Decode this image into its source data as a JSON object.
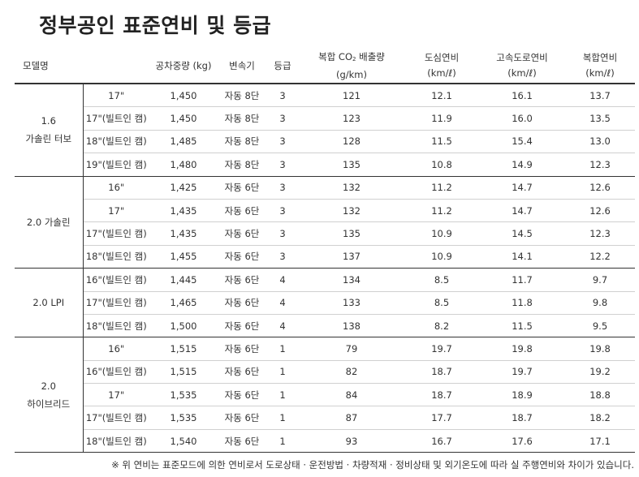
{
  "title": "정부공인 표준연비 및 등급",
  "headers": {
    "model": "모델명",
    "weight": "공차중량 (kg)",
    "transmission": "변속기",
    "grade": "등급",
    "co2_line1": "복합 CO",
    "co2_sub": "2",
    "co2_line1_end": " 배출량",
    "co2_line2": "(g/km)",
    "city_line1": "도심연비",
    "city_line2": "(km/ℓ)",
    "highway_line1": "고속도로연비",
    "highway_line2": "(km/ℓ)",
    "combined_line1": "복합연비",
    "combined_line2": "(km/ℓ)"
  },
  "groups": [
    {
      "model_line1": "1.6",
      "model_line2": "가솔린 터보",
      "rows": [
        {
          "trim": "17\"",
          "weight": "1,450",
          "transmission": "자동 8단",
          "grade": "3",
          "co2": "121",
          "city": "12.1",
          "highway": "16.1",
          "combined": "13.7"
        },
        {
          "trim": "17\"(빌트인 캠)",
          "weight": "1,450",
          "transmission": "자동 8단",
          "grade": "3",
          "co2": "123",
          "city": "11.9",
          "highway": "16.0",
          "combined": "13.5"
        },
        {
          "trim": "18\"(빌트인 캠)",
          "weight": "1,485",
          "transmission": "자동 8단",
          "grade": "3",
          "co2": "128",
          "city": "11.5",
          "highway": "15.4",
          "combined": "13.0"
        },
        {
          "trim": "19\"(빌트인 캠)",
          "weight": "1,480",
          "transmission": "자동 8단",
          "grade": "3",
          "co2": "135",
          "city": "10.8",
          "highway": "14.9",
          "combined": "12.3"
        }
      ]
    },
    {
      "model_line1": "2.0 가솔린",
      "model_line2": "",
      "rows": [
        {
          "trim": "16\"",
          "weight": "1,425",
          "transmission": "자동 6단",
          "grade": "3",
          "co2": "132",
          "city": "11.2",
          "highway": "14.7",
          "combined": "12.6"
        },
        {
          "trim": "17\"",
          "weight": "1,435",
          "transmission": "자동 6단",
          "grade": "3",
          "co2": "132",
          "city": "11.2",
          "highway": "14.7",
          "combined": "12.6"
        },
        {
          "trim": "17\"(빌트인 캠)",
          "weight": "1,435",
          "transmission": "자동 6단",
          "grade": "3",
          "co2": "135",
          "city": "10.9",
          "highway": "14.5",
          "combined": "12.3"
        },
        {
          "trim": "18\"(빌트인 캠)",
          "weight": "1,455",
          "transmission": "자동 6단",
          "grade": "3",
          "co2": "137",
          "city": "10.9",
          "highway": "14.1",
          "combined": "12.2"
        }
      ]
    },
    {
      "model_line1": "2.0 LPI",
      "model_line2": "",
      "rows": [
        {
          "trim": "16\"(빌트인 캠)",
          "weight": "1,445",
          "transmission": "자동 6단",
          "grade": "4",
          "co2": "134",
          "city": "8.5",
          "highway": "11.7",
          "combined": "9.7"
        },
        {
          "trim": "17\"(빌트인 캠)",
          "weight": "1,465",
          "transmission": "자동 6단",
          "grade": "4",
          "co2": "133",
          "city": "8.5",
          "highway": "11.8",
          "combined": "9.8"
        },
        {
          "trim": "18\"(빌트인 캠)",
          "weight": "1,500",
          "transmission": "자동 6단",
          "grade": "4",
          "co2": "138",
          "city": "8.2",
          "highway": "11.5",
          "combined": "9.5"
        }
      ]
    },
    {
      "model_line1": "2.0",
      "model_line2": "하이브리드",
      "rows": [
        {
          "trim": "16\"",
          "weight": "1,515",
          "transmission": "자동 6단",
          "grade": "1",
          "co2": "79",
          "city": "19.7",
          "highway": "19.8",
          "combined": "19.8"
        },
        {
          "trim": "16\"(빌트인 캠)",
          "weight": "1,515",
          "transmission": "자동 6단",
          "grade": "1",
          "co2": "82",
          "city": "18.7",
          "highway": "19.7",
          "combined": "19.2"
        },
        {
          "trim": "17\"",
          "weight": "1,535",
          "transmission": "자동 6단",
          "grade": "1",
          "co2": "84",
          "city": "18.7",
          "highway": "18.9",
          "combined": "18.8"
        },
        {
          "trim": "17\"(빌트인 캠)",
          "weight": "1,535",
          "transmission": "자동 6단",
          "grade": "1",
          "co2": "87",
          "city": "17.7",
          "highway": "18.7",
          "combined": "18.2"
        },
        {
          "trim": "18\"(빌트인 캠)",
          "weight": "1,540",
          "transmission": "자동 6단",
          "grade": "1",
          "co2": "93",
          "city": "16.7",
          "highway": "17.6",
          "combined": "17.1"
        }
      ]
    }
  ],
  "footnote": "※ 위 연비는 표준모드에 의한 연비로서 도로상태 · 운전방법 · 차량적재 · 정비상태 및 외기온도에 따라 실 주행연비와 차이가 있습니다."
}
